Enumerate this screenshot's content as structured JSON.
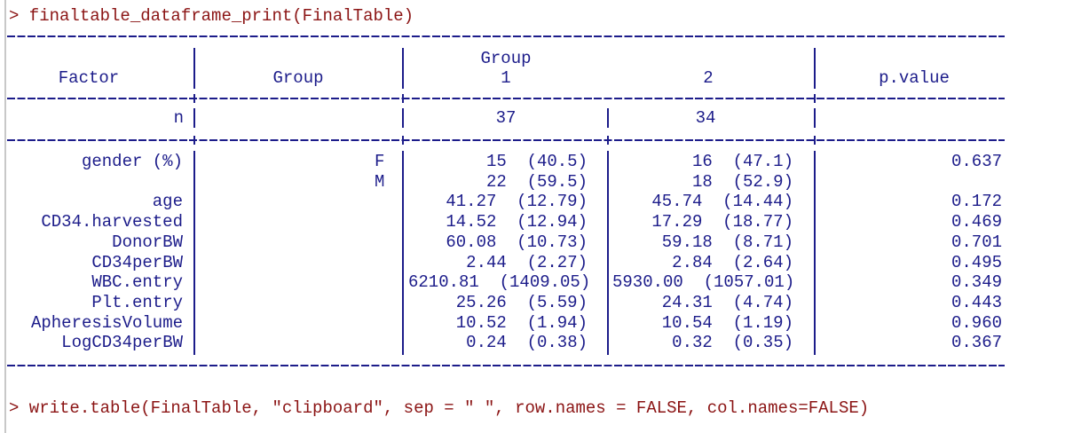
{
  "console": {
    "command1": "> finaltable_dataframe_print(FinalTable)",
    "command2": "> write.table(FinalTable, \"clipboard\", sep = \" \", row.names = FALSE, col.names=FALSE)"
  },
  "table": {
    "headers": {
      "factor": "Factor",
      "group": "Group",
      "group_span": "Group",
      "group1": "1",
      "group2": "2",
      "p_value": "p.value"
    },
    "n_row": {
      "label": "n",
      "group1": "37",
      "group2": "34"
    },
    "rows": [
      {
        "factor": "gender (%)",
        "level": "F",
        "group1": "15  (40.5)",
        "group2": "16  (47.1)",
        "p": "0.637"
      },
      {
        "factor": "",
        "level": "M",
        "group1": "22  (59.5)",
        "group2": "18  (52.9)",
        "p": ""
      },
      {
        "factor": "age",
        "level": "",
        "group1": "41.27  (12.79)",
        "group2": "45.74  (14.44)",
        "p": "0.172"
      },
      {
        "factor": "CD34.harvested",
        "level": "",
        "group1": "14.52  (12.94)",
        "group2": "17.29  (18.77)",
        "p": "0.469"
      },
      {
        "factor": "DonorBW",
        "level": "",
        "group1": "60.08  (10.73)",
        "group2": "59.18  (8.71)",
        "p": "0.701"
      },
      {
        "factor": "CD34perBW",
        "level": "",
        "group1": "2.44  (2.27)",
        "group2": "2.84  (2.64)",
        "p": "0.495"
      },
      {
        "factor": "WBC.entry",
        "level": "",
        "group1": "6210.81  (1409.05)",
        "group2": "5930.00  (1057.01)",
        "p": "0.349"
      },
      {
        "factor": "Plt.entry",
        "level": "",
        "group1": "25.26  (5.59)",
        "group2": "24.31  (4.74)",
        "p": "0.443"
      },
      {
        "factor": "ApheresisVolume",
        "level": "",
        "group1": "10.52  (1.94)",
        "group2": "10.54  (1.19)",
        "p": "0.960"
      },
      {
        "factor": "LogCD34perBW",
        "level": "",
        "group1": "0.24  (0.38)",
        "group2": "0.32  (0.35)",
        "p": "0.367"
      }
    ]
  },
  "colors": {
    "command": "#8b1414",
    "output": "#1c1c8a"
  }
}
